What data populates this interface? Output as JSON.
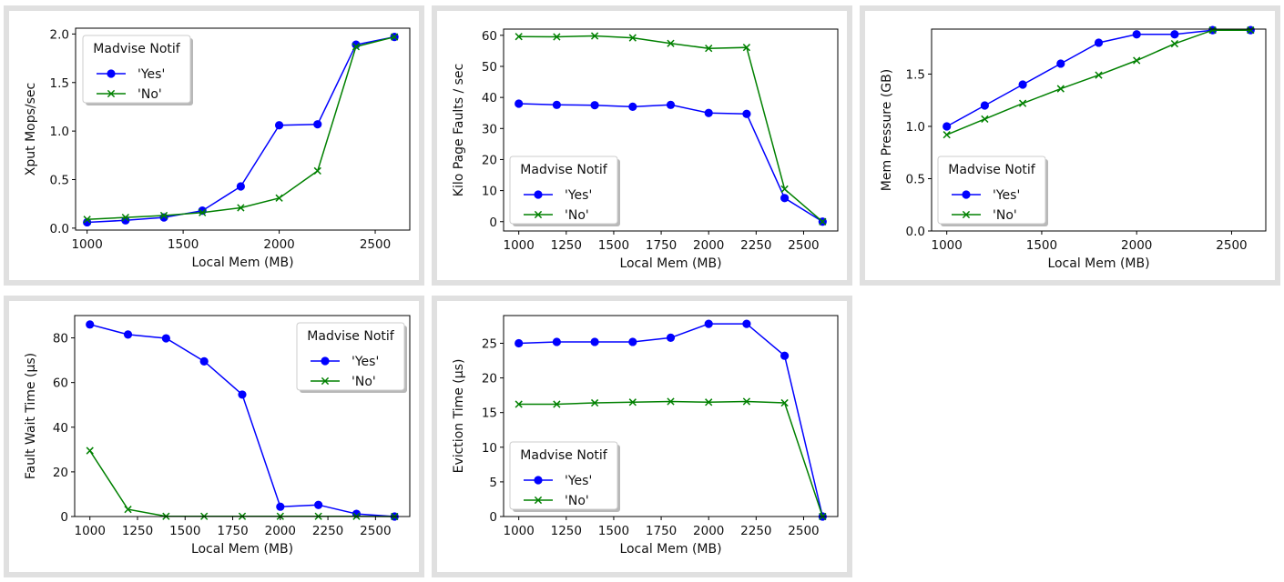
{
  "legend_title": "Madvise Notif",
  "colors": {
    "yes": "#0000ff",
    "no": "#008000"
  },
  "chart_data": [
    {
      "type": "line",
      "xlabel": "Local Mem (MB)",
      "ylabel": "Xput Mops/sec",
      "xlim": [
        940,
        2680
      ],
      "ylim": [
        -0.02,
        2.06
      ],
      "xticks": [
        1000,
        1500,
        2000,
        2500
      ],
      "yticks": [
        0.0,
        0.5,
        1.0,
        1.5,
        2.0
      ],
      "ytick_decimals": 1,
      "legend_position": "upper-left",
      "series": [
        {
          "name": "'Yes'",
          "marker": "circle",
          "color": "#0000ff",
          "x": [
            1000,
            1200,
            1400,
            1600,
            1800,
            2000,
            2200,
            2400,
            2600
          ],
          "y": [
            0.06,
            0.08,
            0.11,
            0.18,
            0.43,
            1.06,
            1.07,
            1.89,
            1.97
          ]
        },
        {
          "name": "'No'",
          "marker": "x",
          "color": "#008000",
          "x": [
            1000,
            1200,
            1400,
            1600,
            1800,
            2000,
            2200,
            2400,
            2600
          ],
          "y": [
            0.09,
            0.11,
            0.13,
            0.16,
            0.21,
            0.31,
            0.59,
            1.87,
            1.97
          ]
        }
      ]
    },
    {
      "type": "line",
      "xlabel": "Local Mem (MB)",
      "ylabel": "Kilo Page Faults / sec",
      "xlim": [
        920,
        2680
      ],
      "ylim": [
        -3,
        62
      ],
      "xticks": [
        1000,
        1250,
        1500,
        1750,
        2000,
        2250,
        2500
      ],
      "yticks": [
        0,
        10,
        20,
        30,
        40,
        50,
        60
      ],
      "ytick_decimals": 0,
      "legend_position": "lower-left",
      "series": [
        {
          "name": "'Yes'",
          "marker": "circle",
          "color": "#0000ff",
          "x": [
            1000,
            1200,
            1400,
            1600,
            1800,
            2000,
            2200,
            2400,
            2600
          ],
          "y": [
            38,
            37.6,
            37.5,
            37,
            37.6,
            35,
            34.7,
            7.6,
            0
          ]
        },
        {
          "name": "'No'",
          "marker": "x",
          "color": "#008000",
          "x": [
            1000,
            1200,
            1400,
            1600,
            1800,
            2000,
            2200,
            2400,
            2600
          ],
          "y": [
            59.6,
            59.5,
            59.8,
            59.2,
            57.4,
            55.8,
            56.1,
            10.5,
            0
          ]
        }
      ]
    },
    {
      "type": "line",
      "xlabel": "Local Mem (MB)",
      "ylabel": "Mem Pressure (GB)",
      "xlim": [
        920,
        2680
      ],
      "ylim": [
        0,
        1.93
      ],
      "xticks": [
        1000,
        1500,
        2000,
        2500
      ],
      "yticks": [
        0.0,
        0.5,
        1.0,
        1.5
      ],
      "ytick_decimals": 1,
      "legend_position": "lower-left",
      "series": [
        {
          "name": "'Yes'",
          "marker": "circle",
          "color": "#0000ff",
          "x": [
            1000,
            1200,
            1400,
            1600,
            1800,
            2000,
            2200,
            2400,
            2600
          ],
          "y": [
            1.0,
            1.2,
            1.4,
            1.6,
            1.8,
            1.88,
            1.88,
            1.92,
            1.92
          ]
        },
        {
          "name": "'No'",
          "marker": "x",
          "color": "#008000",
          "x": [
            1000,
            1200,
            1400,
            1600,
            1800,
            2000,
            2200,
            2400,
            2600
          ],
          "y": [
            0.92,
            1.07,
            1.22,
            1.36,
            1.49,
            1.63,
            1.79,
            1.92,
            1.92
          ]
        }
      ]
    },
    {
      "type": "line",
      "xlabel": "Local Mem (MB)",
      "ylabel": "Fault Wait Time (µs)",
      "xlim": [
        920,
        2680
      ],
      "ylim": [
        0,
        90
      ],
      "xticks": [
        1000,
        1250,
        1500,
        1750,
        2000,
        2250,
        2500
      ],
      "yticks": [
        0,
        20,
        40,
        60,
        80
      ],
      "ytick_decimals": 0,
      "legend_position": "upper-right",
      "series": [
        {
          "name": "'Yes'",
          "marker": "circle",
          "color": "#0000ff",
          "x": [
            1000,
            1200,
            1400,
            1600,
            1800,
            2000,
            2200,
            2400,
            2600
          ],
          "y": [
            86,
            81.5,
            79.8,
            69.5,
            54.6,
            4.4,
            5.2,
            1.2,
            0
          ]
        },
        {
          "name": "'No'",
          "marker": "x",
          "color": "#008000",
          "x": [
            1000,
            1200,
            1400,
            1600,
            1800,
            2000,
            2200,
            2400,
            2600
          ],
          "y": [
            29.5,
            3.2,
            0.1,
            0.1,
            0.1,
            0.1,
            0.1,
            0.1,
            0
          ]
        }
      ]
    },
    {
      "type": "line",
      "xlabel": "Local Mem (MB)",
      "ylabel": "Eviction Time (µs)",
      "xlim": [
        920,
        2680
      ],
      "ylim": [
        0,
        29
      ],
      "xticks": [
        1000,
        1250,
        1500,
        1750,
        2000,
        2250,
        2500
      ],
      "yticks": [
        0,
        5,
        10,
        15,
        20,
        25
      ],
      "ytick_decimals": 0,
      "legend_position": "lower-left",
      "series": [
        {
          "name": "'Yes'",
          "marker": "circle",
          "color": "#0000ff",
          "x": [
            1000,
            1200,
            1400,
            1600,
            1800,
            2000,
            2200,
            2400,
            2600
          ],
          "y": [
            25,
            25.2,
            25.2,
            25.2,
            25.8,
            27.8,
            27.8,
            23.2,
            0
          ]
        },
        {
          "name": "'No'",
          "marker": "x",
          "color": "#008000",
          "x": [
            1000,
            1200,
            1400,
            1600,
            1800,
            2000,
            2200,
            2400,
            2600
          ],
          "y": [
            16.2,
            16.2,
            16.4,
            16.5,
            16.6,
            16.5,
            16.6,
            16.4,
            0
          ]
        }
      ]
    }
  ]
}
